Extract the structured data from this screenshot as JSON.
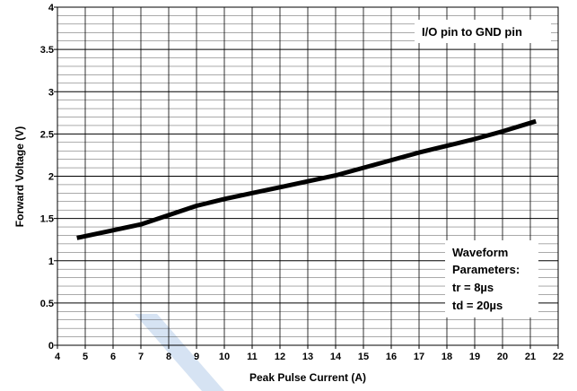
{
  "chart_data": {
    "type": "line",
    "title": "",
    "xlabel": "Peak Pulse Current (A)",
    "ylabel": "Forward Voltage (V)",
    "xlim": [
      4,
      22
    ],
    "ylim": [
      0,
      4
    ],
    "x_ticks": [
      "4",
      "5",
      "6",
      "7",
      "8",
      "9",
      "10",
      "11",
      "12",
      "13",
      "14",
      "15",
      "16",
      "17",
      "18",
      "19",
      "20",
      "21",
      "22"
    ],
    "y_ticks": [
      "0",
      "0.5",
      "1",
      "1.5",
      "2",
      "2.5",
      "3",
      "3.5",
      "4"
    ],
    "grid": true,
    "annotations": {
      "box1": "I/O pin to GND pin",
      "box2_lines": [
        "Waveform",
        "Parameters:",
        "tr = 8µs",
        "td = 20µs"
      ]
    },
    "series": [
      {
        "x": [
          4.7,
          6.0,
          7.0,
          8.0,
          9.0,
          10.0,
          11.0,
          12.0,
          13.0,
          14.0,
          15.0,
          16.0,
          17.0,
          18.0,
          19.0,
          20.0,
          21.2
        ],
        "y": [
          1.27,
          1.36,
          1.43,
          1.54,
          1.65,
          1.73,
          1.8,
          1.87,
          1.94,
          2.01,
          2.1,
          2.19,
          2.28,
          2.36,
          2.44,
          2.53,
          2.65
        ]
      }
    ],
    "colors": {
      "line": "#000000",
      "grid": "#000000",
      "watermark": "#d6e3f3"
    }
  }
}
